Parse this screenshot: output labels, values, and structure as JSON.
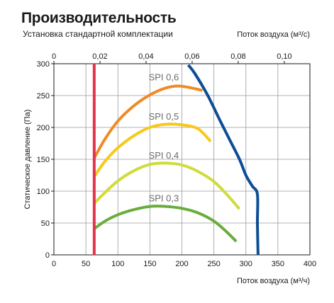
{
  "header": {
    "title": "Производительность",
    "subtitle": "Установка стандартной комплектации"
  },
  "chart_data": {
    "type": "line",
    "xlabel": "Поток воздуха (м³/ч)",
    "x2label": "Поток воздуха (м³/с)",
    "ylabel": "Статическое давление (Па)",
    "xlim": [
      0,
      400
    ],
    "ylim": [
      0,
      300
    ],
    "x2lim": [
      0,
      0.1111
    ],
    "grid": true,
    "x_ticks": [
      0,
      50,
      100,
      150,
      200,
      250,
      300,
      350,
      400
    ],
    "y_ticks": [
      0,
      50,
      100,
      150,
      200,
      250,
      300
    ],
    "x2_ticks": [
      0,
      0.02,
      0.04,
      0.06,
      0.08,
      0.1
    ],
    "x2_tick_labels": [
      "0",
      "0,02",
      "0,04",
      "0,06",
      "0,08",
      "0,10"
    ],
    "series": [
      {
        "name": "SPI 0,6",
        "color": "#f08a24",
        "x": [
          63,
          80,
          100,
          125,
          150,
          175,
          195,
          215,
          232
        ],
        "y": [
          152,
          182,
          210,
          234,
          251,
          262,
          265,
          262,
          258
        ]
      },
      {
        "name": "SPI 0,5",
        "color": "#f8c81a",
        "x": [
          63,
          80,
          100,
          125,
          150,
          175,
          200,
          225,
          245
        ],
        "y": [
          123,
          147,
          168,
          187,
          200,
          205,
          204,
          198,
          178
        ]
      },
      {
        "name": "SPI 0,4",
        "color": "#cfdc3a",
        "x": [
          63,
          80,
          100,
          125,
          150,
          175,
          200,
          225,
          250,
          270,
          290
        ],
        "y": [
          81,
          98,
          116,
          132,
          142,
          144,
          141,
          131,
          115,
          95,
          72
        ]
      },
      {
        "name": "SPI 0,3",
        "color": "#6aad3c",
        "x": [
          63,
          80,
          100,
          125,
          150,
          175,
          200,
          225,
          250,
          270,
          285
        ],
        "y": [
          41,
          53,
          63,
          71,
          76,
          76,
          73,
          66,
          53,
          36,
          21
        ]
      },
      {
        "name": "",
        "color": "#0c4e95",
        "x": [
          210,
          220,
          240,
          260,
          275,
          290,
          300,
          310,
          318,
          318,
          319
        ],
        "y": [
          298,
          285,
          251,
          210,
          180,
          150,
          125,
          108,
          95,
          50,
          0
        ]
      },
      {
        "name": "",
        "color": "#e5334b",
        "x": [
          63,
          63
        ],
        "y": [
          0,
          300
        ]
      }
    ],
    "series_labels": [
      {
        "text": "SPI 0,6",
        "x": 148,
        "y": 274
      },
      {
        "text": "SPI 0,5",
        "x": 148,
        "y": 212
      },
      {
        "text": "SPI 0,4",
        "x": 148,
        "y": 151
      },
      {
        "text": "SPI 0,3",
        "x": 148,
        "y": 84
      }
    ]
  }
}
